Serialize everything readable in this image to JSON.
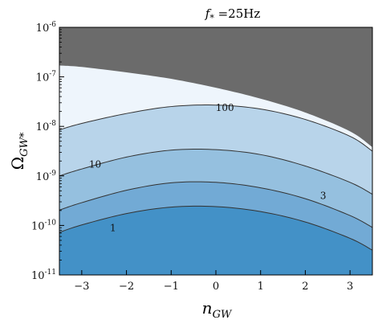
{
  "chart_data": {
    "type": "contour",
    "title_main": "f",
    "title_sub": "*",
    "title_rest": " =25Hz",
    "xlabel_main": "n",
    "xlabel_sub": "GW",
    "ylabel_main": "Ω",
    "ylabel_sub": "GW*",
    "xlim": [
      -3.5,
      3.5
    ],
    "ylim_log10": [
      -11,
      -6
    ],
    "y_scale": "log",
    "x_ticks": [
      {
        "v": -3,
        "label": "−3"
      },
      {
        "v": -2,
        "label": "−2"
      },
      {
        "v": -1,
        "label": "−1"
      },
      {
        "v": 0,
        "label": "0"
      },
      {
        "v": 1,
        "label": "1"
      },
      {
        "v": 2,
        "label": "2"
      },
      {
        "v": 3,
        "label": "3"
      }
    ],
    "y_ticks": [
      {
        "v": -11,
        "label": "10",
        "exp": "-11"
      },
      {
        "v": -10,
        "label": "10",
        "exp": "-10"
      },
      {
        "v": -9,
        "label": "10",
        "exp": "-9"
      },
      {
        "v": -8,
        "label": "10",
        "exp": "-8"
      },
      {
        "v": -7,
        "label": "10",
        "exp": "-7"
      },
      {
        "v": -6,
        "label": "10",
        "exp": "-6"
      }
    ],
    "contour_levels": [
      {
        "label": "1",
        "label_x": -2.3,
        "label_y_log10": -10.05,
        "curve": [
          [
            -3.5,
            -10.14
          ],
          [
            -3.0,
            -9.99
          ],
          [
            -2.0,
            -9.76
          ],
          [
            -1.0,
            -9.63
          ],
          [
            0.0,
            -9.62
          ],
          [
            1.0,
            -9.72
          ],
          [
            2.0,
            -9.93
          ],
          [
            3.0,
            -10.26
          ],
          [
            3.5,
            -10.5
          ]
        ]
      },
      {
        "label": "3",
        "label_x": 2.4,
        "label_y_log10": -9.4,
        "curve": [
          [
            -3.5,
            -9.69
          ],
          [
            -3.0,
            -9.54
          ],
          [
            -2.0,
            -9.29
          ],
          [
            -1.0,
            -9.14
          ],
          [
            0.0,
            -9.13
          ],
          [
            1.0,
            -9.24
          ],
          [
            2.0,
            -9.46
          ],
          [
            3.0,
            -9.8
          ],
          [
            3.5,
            -10.04
          ]
        ]
      },
      {
        "label": "10",
        "label_x": -2.7,
        "label_y_log10": -8.77,
        "curve": [
          [
            -3.5,
            -9.0
          ],
          [
            -3.0,
            -8.86
          ],
          [
            -2.0,
            -8.62
          ],
          [
            -1.0,
            -8.48
          ],
          [
            0.0,
            -8.47
          ],
          [
            1.0,
            -8.57
          ],
          [
            2.0,
            -8.8
          ],
          [
            3.0,
            -9.13
          ],
          [
            3.5,
            -9.37
          ]
        ]
      },
      {
        "label": "100",
        "label_x": 0.2,
        "label_y_log10": -7.62,
        "curve": [
          [
            -3.5,
            -8.07
          ],
          [
            -3.0,
            -7.94
          ],
          [
            -2.0,
            -7.74
          ],
          [
            -1.0,
            -7.6
          ],
          [
            0.0,
            -7.57
          ],
          [
            1.0,
            -7.65
          ],
          [
            2.0,
            -7.86
          ],
          [
            3.0,
            -8.2
          ],
          [
            3.5,
            -8.5
          ]
        ]
      }
    ],
    "excluded_region_boundary": [
      [
        -3.5,
        -6.77
      ],
      [
        -3.0,
        -6.8
      ],
      [
        -2.0,
        -6.91
      ],
      [
        -1.0,
        -7.04
      ],
      [
        0.0,
        -7.22
      ],
      [
        1.0,
        -7.44
      ],
      [
        2.0,
        -7.72
      ],
      [
        3.0,
        -8.1
      ],
      [
        3.5,
        -8.42
      ]
    ],
    "colors": {
      "excluded": "#6b6b6b",
      "band_above_100": "#eef5fc",
      "band_10_100": "#b8d4ea",
      "band_3_10": "#95c0df",
      "band_1_3": "#72aad5",
      "band_below_1": "#4391c7",
      "contour_line": "#333333"
    }
  }
}
